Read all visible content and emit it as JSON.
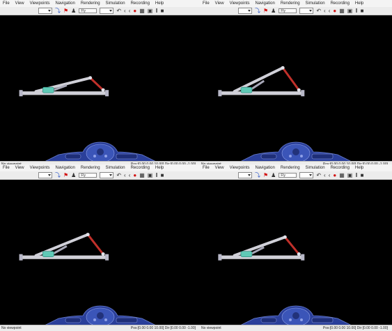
{
  "menus": [
    "File",
    "View",
    "Viewpoints",
    "Navigation",
    "Rendering",
    "Simulation",
    "Recording",
    "Help"
  ],
  "toolbar": {
    "navigation_mode": "Fly"
  },
  "status": {
    "viewpoint": "No viewpoint",
    "position_readout": "Pos:[0.00 0.00 10.00] Dir:[0.00 0.00 -1.00]"
  },
  "panes": [
    {
      "linkage_angle_deg": 14
    },
    {
      "linkage_angle_deg": 26
    },
    {
      "linkage_angle_deg": 22
    },
    {
      "linkage_angle_deg": 20
    }
  ],
  "colors": {
    "background": "#000000",
    "rod": "#d0d0d8",
    "coupler": "#c0302a",
    "block": "#5fc9b6",
    "console": "#2a3f9a"
  },
  "icons": [
    "dropdown-arrow-icon",
    "jump-icon",
    "flag-icon",
    "walk-icon",
    "undo-icon",
    "prev-viewpoint-icon",
    "next-viewpoint-icon",
    "record-icon",
    "save-icon",
    "camera-icon",
    "pause-icon",
    "stop-icon"
  ]
}
